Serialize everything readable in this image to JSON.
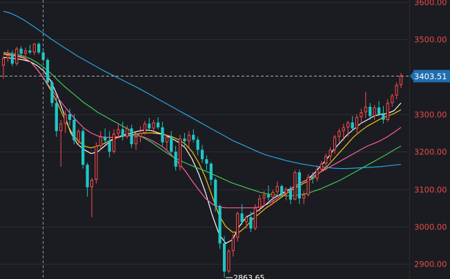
{
  "chart_data": {
    "type": "candlestick",
    "y_axis": {
      "ticks": [
        {
          "value": 3600,
          "label": "3600.00"
        },
        {
          "value": 3500,
          "label": "3500.00"
        },
        {
          "value": 3300,
          "label": "3300.00"
        },
        {
          "value": 3200,
          "label": "3200.00"
        },
        {
          "value": 3100,
          "label": "3100.00"
        },
        {
          "value": 3000,
          "label": "3000.00"
        },
        {
          "value": 2900,
          "label": "2900.00"
        }
      ],
      "range": [
        2860,
        3605
      ]
    },
    "last_price": {
      "value": 3403.51,
      "label": "3403.51"
    },
    "low_annotation": {
      "value": 2863.65,
      "label": "2863.65",
      "candle_index": 50
    },
    "colors": {
      "background": "#1b1c21",
      "up": "#ff4d4f",
      "down": "#1fc7c7",
      "grid": "#2c2d33",
      "tick_text": "#e84a4a",
      "price_tag": "#1f6fb0",
      "ma5": "#ffffff",
      "ma10": "#f5c518",
      "ma20": "#ff5fa8",
      "ma60": "#3ccf5a",
      "ma120": "#2aa6e6"
    },
    "candles": [
      [
        3430,
        3455,
        3395,
        3450
      ],
      [
        3450,
        3472,
        3440,
        3458
      ],
      [
        3458,
        3470,
        3428,
        3435
      ],
      [
        3435,
        3480,
        3430,
        3475
      ],
      [
        3475,
        3482,
        3455,
        3462
      ],
      [
        3462,
        3478,
        3450,
        3470
      ],
      [
        3470,
        3485,
        3460,
        3465
      ],
      [
        3465,
        3490,
        3458,
        3488
      ],
      [
        3488,
        3492,
        3460,
        3465
      ],
      [
        3465,
        3472,
        3440,
        3445
      ],
      [
        3445,
        3450,
        3380,
        3385
      ],
      [
        3385,
        3390,
        3320,
        3330
      ],
      [
        3330,
        3345,
        3240,
        3255
      ],
      [
        3255,
        3285,
        3160,
        3275
      ],
      [
        3275,
        3310,
        3250,
        3300
      ],
      [
        3300,
        3315,
        3270,
        3285
      ],
      [
        3285,
        3300,
        3220,
        3230
      ],
      [
        3230,
        3260,
        3215,
        3255
      ],
      [
        3255,
        3262,
        3155,
        3165
      ],
      [
        3165,
        3170,
        3080,
        3105
      ],
      [
        3105,
        3130,
        3025,
        3125
      ],
      [
        3125,
        3225,
        3115,
        3215
      ],
      [
        3215,
        3255,
        3205,
        3240
      ],
      [
        3240,
        3262,
        3220,
        3230
      ],
      [
        3230,
        3255,
        3185,
        3200
      ],
      [
        3200,
        3260,
        3195,
        3248
      ],
      [
        3248,
        3275,
        3240,
        3260
      ],
      [
        3260,
        3280,
        3230,
        3240
      ],
      [
        3240,
        3270,
        3235,
        3262
      ],
      [
        3262,
        3272,
        3210,
        3220
      ],
      [
        3220,
        3250,
        3205,
        3240
      ],
      [
        3240,
        3268,
        3225,
        3250
      ],
      [
        3250,
        3282,
        3245,
        3275
      ],
      [
        3275,
        3290,
        3255,
        3262
      ],
      [
        3262,
        3285,
        3250,
        3278
      ],
      [
        3278,
        3292,
        3260,
        3265
      ],
      [
        3265,
        3280,
        3215,
        3225
      ],
      [
        3225,
        3245,
        3205,
        3240
      ],
      [
        3240,
        3255,
        3195,
        3200
      ],
      [
        3200,
        3215,
        3150,
        3160
      ],
      [
        3160,
        3245,
        3150,
        3235
      ],
      [
        3235,
        3250,
        3215,
        3228
      ],
      [
        3228,
        3255,
        3210,
        3245
      ],
      [
        3245,
        3260,
        3225,
        3232
      ],
      [
        3232,
        3240,
        3190,
        3205
      ],
      [
        3205,
        3218,
        3170,
        3180
      ],
      [
        3180,
        3190,
        3150,
        3168
      ],
      [
        3168,
        3172,
        3110,
        3125
      ],
      [
        3125,
        3130,
        3040,
        3055
      ],
      [
        3055,
        3060,
        2940,
        2955
      ],
      [
        2955,
        2975,
        2863.65,
        2880
      ],
      [
        2880,
        2940,
        2875,
        2935
      ],
      [
        2935,
        2980,
        2920,
        2970
      ],
      [
        2970,
        3040,
        2960,
        3035
      ],
      [
        3035,
        3060,
        3005,
        3012
      ],
      [
        3012,
        3030,
        2995,
        3025
      ],
      [
        3025,
        3040,
        2985,
        2995
      ],
      [
        2995,
        3060,
        2990,
        3050
      ],
      [
        3050,
        3085,
        3040,
        3075
      ],
      [
        3075,
        3095,
        3055,
        3085
      ],
      [
        3085,
        3110,
        3070,
        3078
      ],
      [
        3078,
        3098,
        3060,
        3092
      ],
      [
        3092,
        3120,
        3085,
        3108
      ],
      [
        3108,
        3112,
        3080,
        3088
      ],
      [
        3088,
        3105,
        3070,
        3100
      ],
      [
        3100,
        3108,
        3060,
        3072
      ],
      [
        3072,
        3150,
        3070,
        3145
      ],
      [
        3145,
        3152,
        3060,
        3075
      ],
      [
        3075,
        3095,
        3060,
        3085
      ],
      [
        3085,
        3140,
        3080,
        3132
      ],
      [
        3132,
        3145,
        3115,
        3128
      ],
      [
        3128,
        3160,
        3120,
        3152
      ],
      [
        3152,
        3175,
        3145,
        3168
      ],
      [
        3168,
        3195,
        3150,
        3188
      ],
      [
        3188,
        3212,
        3175,
        3205
      ],
      [
        3205,
        3245,
        3195,
        3240
      ],
      [
        3240,
        3262,
        3225,
        3255
      ],
      [
        3255,
        3275,
        3230,
        3265
      ],
      [
        3265,
        3282,
        3240,
        3278
      ],
      [
        3278,
        3295,
        3255,
        3262
      ],
      [
        3262,
        3300,
        3250,
        3292
      ],
      [
        3292,
        3315,
        3275,
        3305
      ],
      [
        3305,
        3360,
        3290,
        3320
      ],
      [
        3320,
        3330,
        3285,
        3295
      ],
      [
        3295,
        3325,
        3285,
        3318
      ],
      [
        3318,
        3335,
        3295,
        3300
      ],
      [
        3300,
        3322,
        3275,
        3285
      ],
      [
        3285,
        3340,
        3280,
        3330
      ],
      [
        3330,
        3355,
        3320,
        3350
      ],
      [
        3350,
        3385,
        3340,
        3378
      ],
      [
        3378,
        3410,
        3370,
        3403.51
      ]
    ],
    "moving_averages": [
      {
        "name": "MA5",
        "color_key": "ma5",
        "values": [
          3452,
          3450,
          3448,
          3445,
          3440,
          3430,
          3415,
          3390,
          3350,
          3300,
          3250,
          3220,
          3205,
          3195,
          3200,
          3215,
          3230,
          3240,
          3245,
          3250,
          3255,
          3258,
          3256,
          3250,
          3245,
          3235,
          3225,
          3210,
          3180,
          3140,
          3090,
          3030,
          2980,
          2955,
          2965,
          3000,
          3025,
          3035,
          3045,
          3060,
          3075,
          3085,
          3095,
          3105,
          3115,
          3125,
          3140,
          3160,
          3180,
          3205,
          3225,
          3245,
          3260,
          3275,
          3285,
          3295,
          3300,
          3302,
          3310,
          3330
        ]
      },
      {
        "name": "MA10",
        "color_key": "ma10",
        "values": [
          3460,
          3458,
          3455,
          3450,
          3440,
          3420,
          3395,
          3365,
          3330,
          3290,
          3255,
          3230,
          3215,
          3210,
          3215,
          3222,
          3232,
          3238,
          3242,
          3245,
          3248,
          3250,
          3250,
          3248,
          3245,
          3240,
          3232,
          3220,
          3200,
          3170,
          3130,
          3080,
          3030,
          3000,
          2985,
          2985,
          3000,
          3020,
          3035,
          3050,
          3062,
          3075,
          3088,
          3100,
          3110,
          3120,
          3130,
          3145,
          3160,
          3180,
          3200,
          3220,
          3240,
          3255,
          3268,
          3278,
          3288,
          3295,
          3302,
          3312
        ]
      },
      {
        "name": "MA20",
        "color_key": "ma20",
        "values": [
          3462,
          3460,
          3457,
          3452,
          3440,
          3420,
          3395,
          3370,
          3345,
          3322,
          3300,
          3280,
          3262,
          3250,
          3242,
          3238,
          3238,
          3240,
          3242,
          3243,
          3242,
          3238,
          3230,
          3220,
          3208,
          3190,
          3170,
          3148,
          3122,
          3098,
          3075,
          3060,
          3052,
          3050,
          3050,
          3050,
          3050,
          3050,
          3052,
          3058,
          3068,
          3080,
          3092,
          3105,
          3115,
          3125,
          3135,
          3145,
          3155,
          3165,
          3175,
          3185,
          3195,
          3205,
          3215,
          3222,
          3230,
          3240,
          3252,
          3265
        ]
      },
      {
        "name": "MA60",
        "color_key": "ma60",
        "values": [
          3465,
          3463,
          3460,
          3455,
          3448,
          3438,
          3425,
          3410,
          3392,
          3375,
          3360,
          3345,
          3330,
          3318,
          3305,
          3295,
          3285,
          3275,
          3265,
          3255,
          3245,
          3235,
          3225,
          3212,
          3200,
          3188,
          3178,
          3170,
          3162,
          3155,
          3148,
          3140,
          3132,
          3124,
          3116,
          3110,
          3104,
          3098,
          3092,
          3088,
          3085,
          3083,
          3082,
          3083,
          3085,
          3088,
          3094,
          3100,
          3108,
          3116,
          3124,
          3134,
          3144,
          3154,
          3164,
          3174,
          3184,
          3194,
          3205,
          3215
        ]
      },
      {
        "name": "MA120",
        "color_key": "ma120",
        "values": [
          3575,
          3570,
          3562,
          3552,
          3540,
          3528,
          3515,
          3502,
          3490,
          3478,
          3467,
          3455,
          3445,
          3435,
          3425,
          3415,
          3406,
          3397,
          3388,
          3379,
          3370,
          3360,
          3350,
          3340,
          3330,
          3320,
          3310,
          3300,
          3290,
          3280,
          3270,
          3260,
          3250,
          3240,
          3230,
          3222,
          3214,
          3206,
          3198,
          3191,
          3186,
          3181,
          3176,
          3172,
          3168,
          3165,
          3162,
          3160,
          3158,
          3156,
          3155,
          3155,
          3156,
          3157,
          3158,
          3159,
          3160,
          3162,
          3164,
          3166
        ]
      }
    ]
  }
}
